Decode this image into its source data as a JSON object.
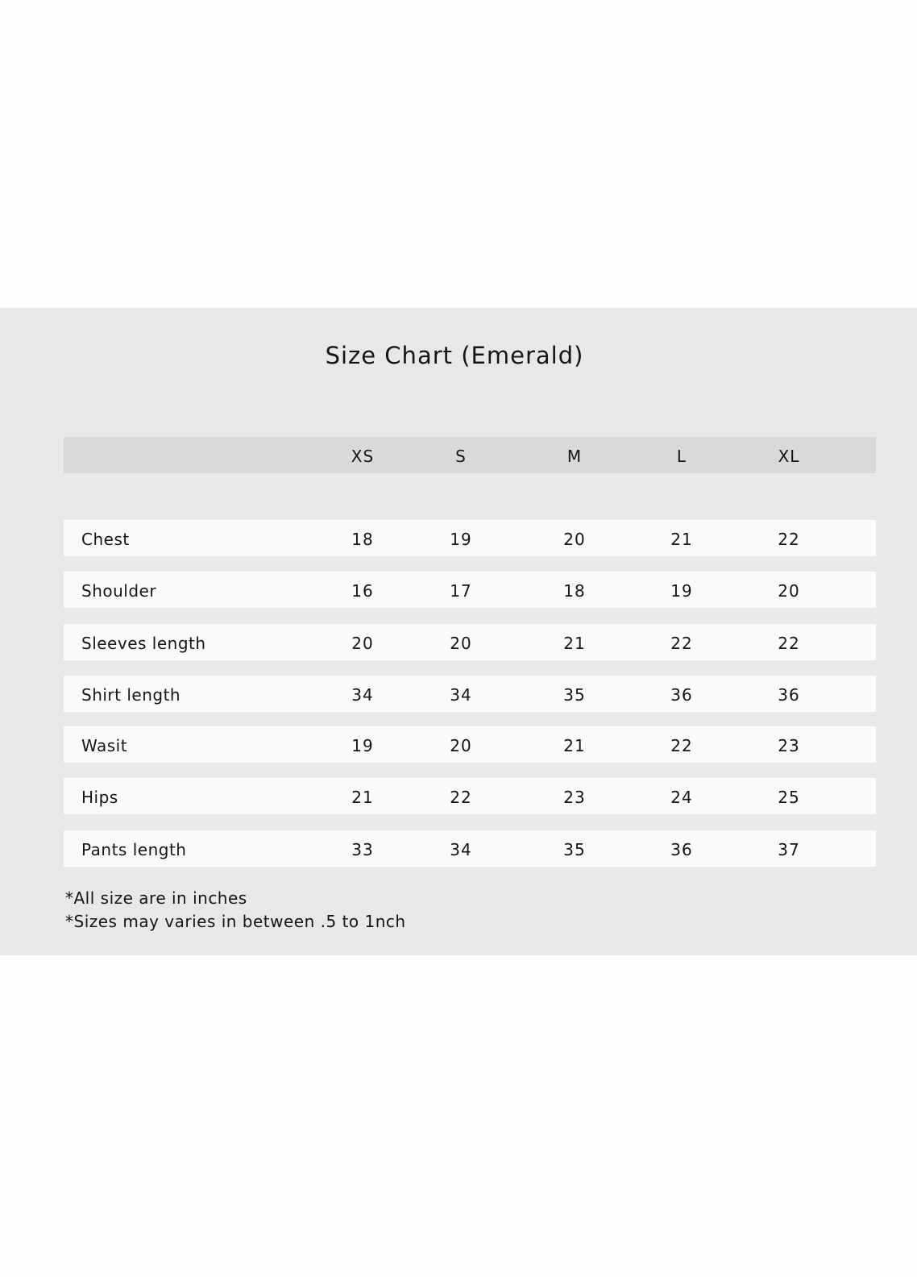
{
  "title": "Size Chart (Emerald)",
  "table": {
    "columns": [
      "XS",
      "S",
      "M",
      "L",
      "XL"
    ],
    "rows": [
      {
        "label": "Chest",
        "values": [
          "18",
          "19",
          "20",
          "21",
          "22"
        ]
      },
      {
        "label": "Shoulder",
        "values": [
          "16",
          "17",
          "18",
          "19",
          "20"
        ]
      },
      {
        "label": "Sleeves length",
        "values": [
          "20",
          "20",
          "21",
          "22",
          "22"
        ]
      },
      {
        "label": "Shirt length",
        "values": [
          "34",
          "34",
          "35",
          "36",
          "36"
        ]
      },
      {
        "label": "Wasit",
        "values": [
          "19",
          "20",
          "21",
          "22",
          "23"
        ]
      },
      {
        "label": "Hips",
        "values": [
          "21",
          "22",
          "23",
          "24",
          "25"
        ]
      },
      {
        "label": "Pants length",
        "values": [
          "33",
          "34",
          "35",
          "36",
          "37"
        ]
      }
    ]
  },
  "notes": [
    "*All size are in inches",
    "*Sizes may varies in between .5 to 1nch"
  ],
  "colors": {
    "background": "#e8e8e8",
    "header": "#d9d9d9",
    "row": "#fafafa",
    "text": "#151515"
  }
}
